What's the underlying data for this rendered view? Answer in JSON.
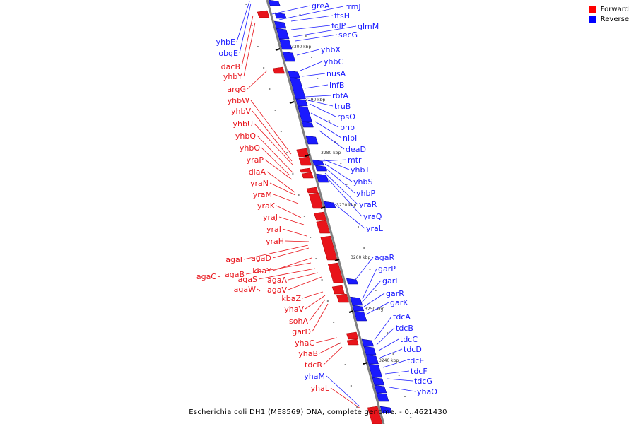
{
  "title": "Escherichia coli DH1 (ME8569) DNA, complete genome. - 0..4621430",
  "legend": [
    {
      "label": "Forward",
      "color": "#ff0000"
    },
    {
      "label": "Reverse",
      "color": "#0000ff"
    }
  ],
  "colors": {
    "forward": "#e8141b",
    "reverse": "#1a1aff",
    "backbone": "#808080"
  },
  "ticks": [
    "3300 kbp",
    "3290 kbp",
    "3280 kbp",
    "3270 kbp",
    "3260 kbp",
    "3250 kbp",
    "3240 kbp"
  ],
  "genes": [
    {
      "name": "greA",
      "strand": "reverse"
    },
    {
      "name": "rrmJ",
      "strand": "reverse"
    },
    {
      "name": "ftsH",
      "strand": "reverse"
    },
    {
      "name": "folP",
      "strand": "reverse"
    },
    {
      "name": "glmM",
      "strand": "reverse"
    },
    {
      "name": "secG",
      "strand": "reverse"
    },
    {
      "name": "yhbX",
      "strand": "reverse"
    },
    {
      "name": "yhbC",
      "strand": "reverse"
    },
    {
      "name": "nusA",
      "strand": "reverse"
    },
    {
      "name": "infB",
      "strand": "reverse"
    },
    {
      "name": "rbfA",
      "strand": "reverse"
    },
    {
      "name": "truB",
      "strand": "reverse"
    },
    {
      "name": "rpsO",
      "strand": "reverse"
    },
    {
      "name": "pnp",
      "strand": "reverse"
    },
    {
      "name": "nlpI",
      "strand": "reverse"
    },
    {
      "name": "deaD",
      "strand": "reverse"
    },
    {
      "name": "mtr",
      "strand": "reverse"
    },
    {
      "name": "yhbT",
      "strand": "reverse"
    },
    {
      "name": "yhbS",
      "strand": "reverse"
    },
    {
      "name": "yhbP",
      "strand": "reverse"
    },
    {
      "name": "yraR",
      "strand": "reverse"
    },
    {
      "name": "yraQ",
      "strand": "reverse"
    },
    {
      "name": "yraL",
      "strand": "reverse"
    },
    {
      "name": "agaR",
      "strand": "reverse"
    },
    {
      "name": "garP",
      "strand": "reverse"
    },
    {
      "name": "garL",
      "strand": "reverse"
    },
    {
      "name": "garR",
      "strand": "reverse"
    },
    {
      "name": "garK",
      "strand": "reverse"
    },
    {
      "name": "tdcA",
      "strand": "reverse"
    },
    {
      "name": "tdcB",
      "strand": "reverse"
    },
    {
      "name": "tdcC",
      "strand": "reverse"
    },
    {
      "name": "tdcD",
      "strand": "reverse"
    },
    {
      "name": "tdcE",
      "strand": "reverse"
    },
    {
      "name": "tdcF",
      "strand": "reverse"
    },
    {
      "name": "tdcG",
      "strand": "reverse"
    },
    {
      "name": "yhaO",
      "strand": "reverse"
    },
    {
      "name": "yhaM",
      "strand": "reverse"
    },
    {
      "name": "yhbE",
      "strand": "reverse"
    },
    {
      "name": "obgE",
      "strand": "reverse"
    },
    {
      "name": "dacB",
      "strand": "forward"
    },
    {
      "name": "yhbY",
      "strand": "forward"
    },
    {
      "name": "argG",
      "strand": "forward"
    },
    {
      "name": "yhbW",
      "strand": "forward"
    },
    {
      "name": "yhbV",
      "strand": "forward"
    },
    {
      "name": "yhbU",
      "strand": "forward"
    },
    {
      "name": "yhbQ",
      "strand": "forward"
    },
    {
      "name": "yhbO",
      "strand": "forward"
    },
    {
      "name": "yraP",
      "strand": "forward"
    },
    {
      "name": "diaA",
      "strand": "forward"
    },
    {
      "name": "yraN",
      "strand": "forward"
    },
    {
      "name": "yraM",
      "strand": "forward"
    },
    {
      "name": "yraK",
      "strand": "forward"
    },
    {
      "name": "yraJ",
      "strand": "forward"
    },
    {
      "name": "yraI",
      "strand": "forward"
    },
    {
      "name": "yraH",
      "strand": "forward"
    },
    {
      "name": "agaI",
      "strand": "forward"
    },
    {
      "name": "agaD",
      "strand": "forward"
    },
    {
      "name": "kbaY",
      "strand": "forward"
    },
    {
      "name": "agaB",
      "strand": "forward"
    },
    {
      "name": "agaC",
      "strand": "forward"
    },
    {
      "name": "agaA",
      "strand": "forward"
    },
    {
      "name": "agaS",
      "strand": "forward"
    },
    {
      "name": "agaW",
      "strand": "forward"
    },
    {
      "name": "agaV",
      "strand": "forward"
    },
    {
      "name": "kbaZ",
      "strand": "forward"
    },
    {
      "name": "yhaV",
      "strand": "forward"
    },
    {
      "name": "sohA",
      "strand": "forward"
    },
    {
      "name": "garD",
      "strand": "forward"
    },
    {
      "name": "yhaC",
      "strand": "forward"
    },
    {
      "name": "yhaB",
      "strand": "forward"
    },
    {
      "name": "tdcR",
      "strand": "forward"
    },
    {
      "name": "yhaL",
      "strand": "forward"
    }
  ]
}
